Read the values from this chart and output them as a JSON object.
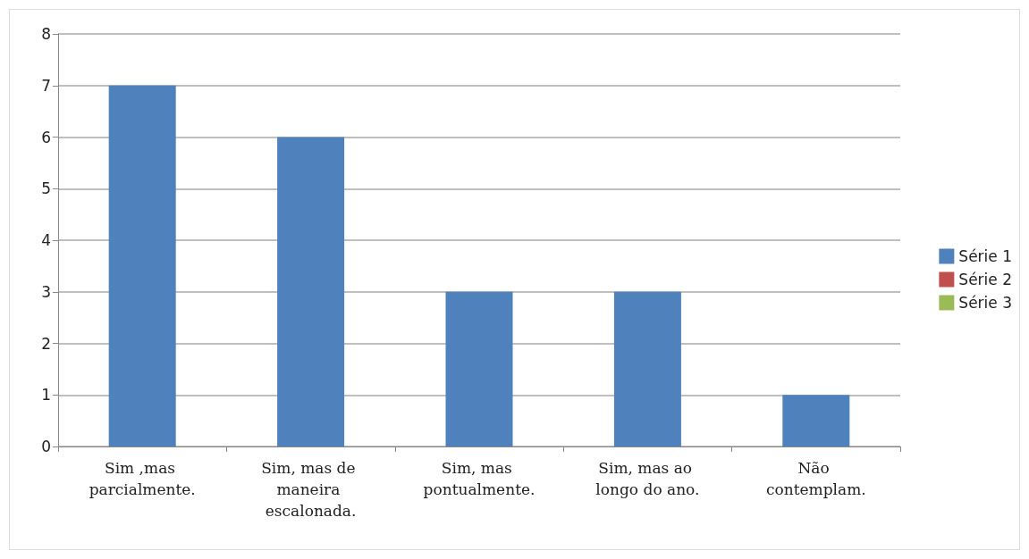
{
  "chart_data": {
    "type": "bar",
    "categories": [
      "Sim ,mas parcialmente.",
      "Sim, mas de maneira escalonada.",
      "Sim, mas pontualmente.",
      "Sim, mas ao longo do ano.",
      "Não contemplam."
    ],
    "series": [
      {
        "name": "Série 1",
        "color": "#4f81bd",
        "values": [
          7,
          6,
          3,
          3,
          1
        ]
      },
      {
        "name": "Série 2",
        "color": "#c0504d",
        "values": [
          null,
          null,
          null,
          null,
          null
        ]
      },
      {
        "name": "Série 3",
        "color": "#9bbb59",
        "values": [
          null,
          null,
          null,
          null,
          null
        ]
      }
    ],
    "ylim": [
      0,
      8
    ],
    "yticks": [
      0,
      1,
      2,
      3,
      4,
      5,
      6,
      7,
      8
    ],
    "grid": "y",
    "legend": "right"
  }
}
